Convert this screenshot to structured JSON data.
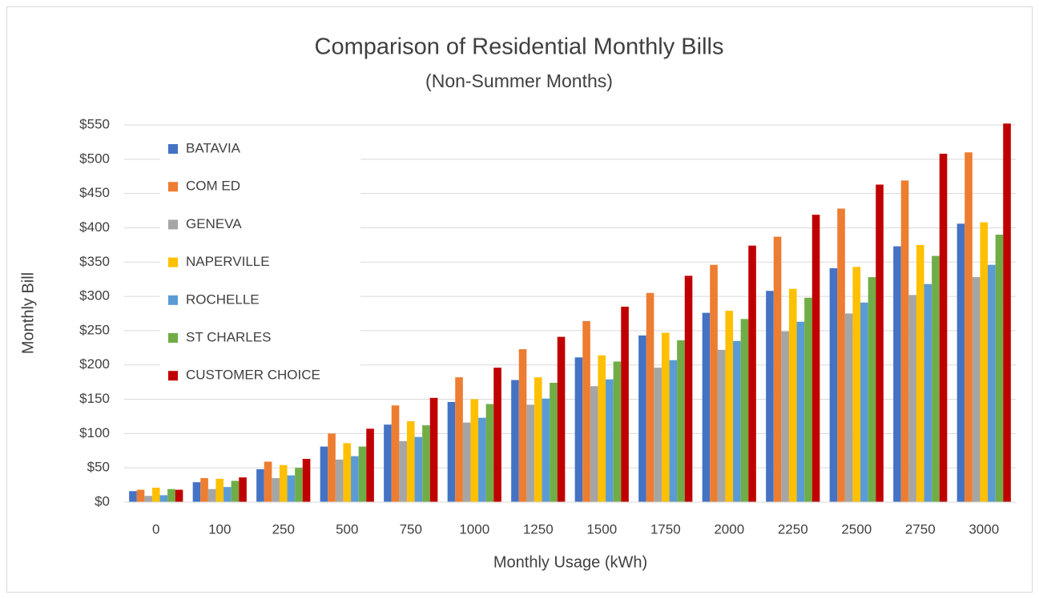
{
  "chart_data": {
    "type": "bar",
    "title": "Comparison of Residential Monthly Bills",
    "subtitle": "(Non-Summer Months)",
    "x_label": "Monthly Usage (kWh)",
    "y_label": "Monthly Bill",
    "categories": [
      "0",
      "100",
      "250",
      "500",
      "750",
      "1000",
      "1250",
      "1500",
      "1750",
      "2000",
      "2250",
      "2500",
      "2750",
      "3000"
    ],
    "series": [
      {
        "name": "BATAVIA",
        "color": "#4472c4",
        "values": [
          16,
          29,
          48,
          81,
          113,
          146,
          178,
          211,
          243,
          276,
          308,
          341,
          373,
          406
        ]
      },
      {
        "name": "COM ED",
        "color": "#ed7d31",
        "values": [
          18,
          35,
          59,
          100,
          141,
          182,
          223,
          264,
          305,
          346,
          387,
          428,
          469,
          510
        ]
      },
      {
        "name": "GENEVA",
        "color": "#a5a5a5",
        "values": [
          9,
          19,
          35,
          62,
          89,
          116,
          142,
          169,
          196,
          222,
          249,
          275,
          302,
          328
        ]
      },
      {
        "name": "NAPERVILLE",
        "color": "#ffc000",
        "values": [
          21,
          34,
          54,
          86,
          118,
          150,
          182,
          214,
          247,
          279,
          311,
          343,
          375,
          408
        ]
      },
      {
        "name": "ROCHELLE",
        "color": "#5b9bd5",
        "values": [
          10,
          22,
          39,
          67,
          95,
          123,
          151,
          179,
          207,
          235,
          263,
          291,
          318,
          346
        ]
      },
      {
        "name": "ST CHARLES",
        "color": "#70ad47",
        "values": [
          19,
          31,
          50,
          81,
          112,
          143,
          174,
          205,
          236,
          267,
          298,
          328,
          359,
          390
        ]
      },
      {
        "name": "CUSTOMER CHOICE",
        "color": "#c00000",
        "values": [
          18,
          36,
          63,
          107,
          152,
          196,
          241,
          285,
          330,
          374,
          419,
          463,
          508,
          552
        ]
      }
    ],
    "ylim": [
      0,
      550
    ],
    "yticks": [
      {
        "value": 0,
        "label": "$0"
      },
      {
        "value": 50,
        "label": "$50"
      },
      {
        "value": 100,
        "label": "$100"
      },
      {
        "value": 150,
        "label": "$150"
      },
      {
        "value": 200,
        "label": "$200"
      },
      {
        "value": 250,
        "label": "$250"
      },
      {
        "value": 300,
        "label": "$300"
      },
      {
        "value": 350,
        "label": "$350"
      },
      {
        "value": 400,
        "label": "$400"
      },
      {
        "value": 450,
        "label": "$450"
      },
      {
        "value": 500,
        "label": "$500"
      },
      {
        "value": 550,
        "label": "$550"
      }
    ],
    "grid": true,
    "legend": "upper left"
  }
}
